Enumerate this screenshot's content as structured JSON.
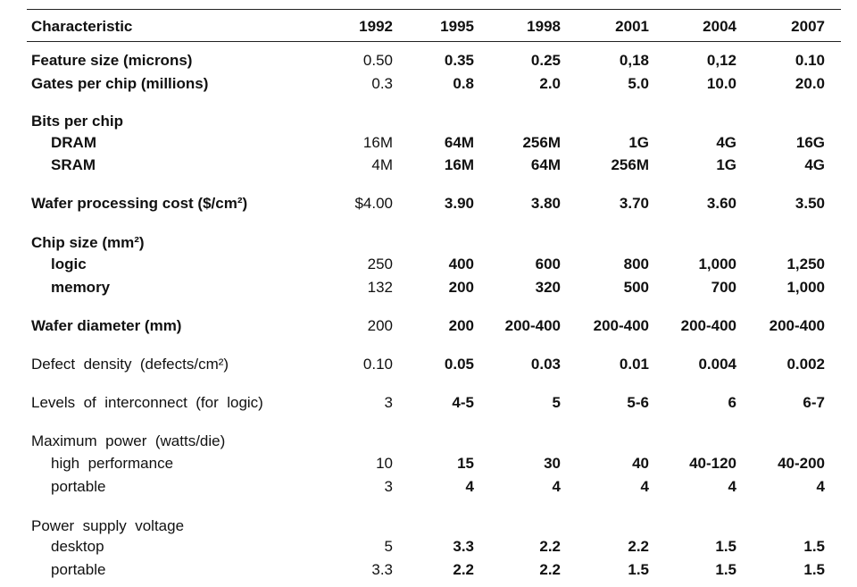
{
  "table": {
    "header": [
      "Characteristic",
      "1992",
      "1995",
      "1998",
      "2001",
      "2004",
      "2007"
    ],
    "rows": [
      {
        "label": "Feature size (microns)",
        "values": [
          "0.50",
          "0.35",
          "0.25",
          "0,18",
          "0,12",
          "0.10"
        ]
      },
      {
        "label": "Gates per chip (millions)",
        "values": [
          "0.3",
          "0.8",
          "2.0",
          "5.0",
          "10.0",
          "20.0"
        ]
      },
      {
        "label": "Bits per chip",
        "rows": [
          {
            "label": "DRAM",
            "values": [
              "16M",
              "64M",
              "256M",
              "1G",
              "4G",
              "16G"
            ]
          },
          {
            "label": "SRAM",
            "values": [
              "4M",
              "16M",
              "64M",
              "256M",
              "1G",
              "4G"
            ]
          }
        ]
      },
      {
        "label": "Wafer processing cost ($/cm²)",
        "values": [
          "$4.00",
          "3.90",
          "3.80",
          "3.70",
          "3.60",
          "3.50"
        ]
      },
      {
        "label": "Chip size (mm²)",
        "rows": [
          {
            "label": "logic",
            "values": [
              "250",
              "400",
              "600",
              "800",
              "1,000",
              "1,250"
            ]
          },
          {
            "label": "memory",
            "values": [
              "132",
              "200",
              "320",
              "500",
              "700",
              "1,000"
            ]
          }
        ]
      },
      {
        "label": "Wafer diameter (mm)",
        "values": [
          "200",
          "200",
          "200-400",
          "200-400",
          "200-400",
          "200-400"
        ]
      },
      {
        "label": "Defect  density  (defects/cm²)",
        "values": [
          "0.10",
          "0.05",
          "0.03",
          "0.01",
          "0.004",
          "0.002"
        ]
      },
      {
        "label": "Levels  of  interconnect  (for  logic)",
        "values": [
          "3",
          "4-5",
          "5",
          "5-6",
          "6",
          "6-7"
        ]
      },
      {
        "label": "Maximum  power  (watts/die)",
        "rows": [
          {
            "label": "high  performance",
            "values": [
              "10",
              "15",
              "30",
              "40",
              "40-120",
              "40-200"
            ]
          },
          {
            "label": "portable",
            "values": [
              "3",
              "4",
              "4",
              "4",
              "4",
              "4"
            ]
          }
        ]
      },
      {
        "label": "Power  supply  voltage",
        "rows": [
          {
            "label": "desktop",
            "values": [
              "5",
              "3.3",
              "2.2",
              "2.2",
              "1.5",
              "1.5"
            ]
          },
          {
            "label": "portable",
            "values": [
              "3.3",
              "2.2",
              "2.2",
              "1.5",
              "1.5",
              "1.5"
            ]
          }
        ]
      }
    ]
  }
}
